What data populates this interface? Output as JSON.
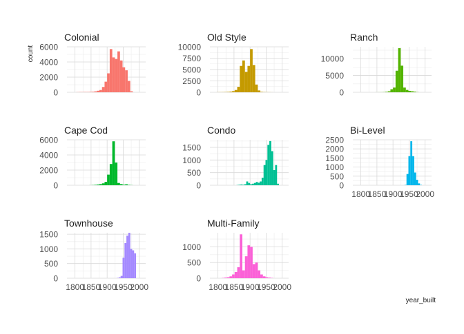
{
  "figure": {
    "ylabel": "count",
    "xlabel": "year_built"
  },
  "style": {
    "grid_major": "#d9d9d9",
    "grid_minor": "#ececec",
    "text": "#222222",
    "tick_text": "#4d4d4d"
  },
  "chart_data": [
    {
      "type": "bar",
      "title": "Colonial",
      "color": "#F8766D",
      "xlim": [
        1775,
        2020
      ],
      "ylim": [
        0,
        6000
      ],
      "yticks": [
        0,
        2000,
        4000,
        6000
      ],
      "ytick_labels": [
        "0",
        "2000",
        "4000",
        "6000"
      ],
      "xticks": [
        1800,
        1850,
        1900,
        1950,
        2000
      ],
      "xtick_labels": [],
      "bin_start": 1780,
      "bin_width": 8,
      "values": [
        0,
        0,
        0,
        20,
        30,
        30,
        40,
        40,
        50,
        70,
        120,
        200,
        300,
        700,
        1400,
        2500,
        5700,
        4600,
        4400,
        5400,
        4200,
        3300,
        2900,
        1500,
        130
      ]
    },
    {
      "type": "bar",
      "title": "Old Style",
      "color": "#C49A00",
      "xlim": [
        1775,
        2020
      ],
      "ylim": [
        0,
        10000
      ],
      "yticks": [
        0,
        2500,
        5000,
        7500,
        10000
      ],
      "ytick_labels": [
        "0",
        "2500",
        "5000",
        "7500",
        "10000"
      ],
      "xticks": [
        1800,
        1850,
        1900,
        1950,
        2000
      ],
      "xtick_labels": [],
      "bin_start": 1780,
      "bin_width": 8,
      "values": [
        0,
        0,
        20,
        30,
        40,
        60,
        90,
        150,
        250,
        500,
        1200,
        5800,
        7000,
        4500,
        5800,
        9500,
        6000,
        1700,
        400,
        100,
        50,
        30,
        20,
        10,
        0
      ]
    },
    {
      "type": "bar",
      "title": "Ranch",
      "color": "#53B400",
      "xlim": [
        1775,
        2020
      ],
      "ylim": [
        0,
        13500
      ],
      "yticks": [
        0,
        5000,
        10000
      ],
      "ytick_labels": [
        "0",
        "5000",
        "10000"
      ],
      "xticks": [
        1800,
        1850,
        1900,
        1950,
        2000
      ],
      "xtick_labels": [],
      "bin_start": 1780,
      "bin_width": 8,
      "values": [
        0,
        0,
        0,
        0,
        0,
        0,
        0,
        0,
        10,
        20,
        30,
        60,
        150,
        300,
        900,
        1400,
        6400,
        13100,
        7900,
        1400,
        700,
        400,
        300,
        200,
        50
      ]
    },
    {
      "type": "bar",
      "title": "Cape Cod",
      "color": "#00B82B",
      "xlim": [
        1775,
        2020
      ],
      "ylim": [
        0,
        6000
      ],
      "yticks": [
        0,
        2000,
        4000,
        6000
      ],
      "ytick_labels": [
        "0",
        "2000",
        "4000",
        "6000"
      ],
      "xticks": [
        1800,
        1850,
        1900,
        1950,
        2000
      ],
      "xtick_labels": [],
      "bin_start": 1780,
      "bin_width": 8,
      "values": [
        0,
        0,
        0,
        0,
        0,
        0,
        0,
        0,
        10,
        30,
        60,
        100,
        150,
        250,
        450,
        1400,
        2800,
        5800,
        3000,
        300,
        150,
        80,
        130,
        50,
        20
      ]
    },
    {
      "type": "bar",
      "title": "Condo",
      "color": "#00C094",
      "xlim": [
        1775,
        2020
      ],
      "ylim": [
        0,
        1800
      ],
      "yticks": [
        0,
        500,
        1000,
        1500
      ],
      "ytick_labels": [
        "0",
        "500",
        "1000",
        "1500"
      ],
      "xticks": [
        1800,
        1850,
        1900,
        1950,
        2000
      ],
      "xtick_labels": [],
      "bin_start": 1780,
      "bin_width": 6,
      "values": [
        0,
        0,
        0,
        0,
        0,
        0,
        0,
        0,
        0,
        0,
        0,
        0,
        0,
        10,
        20,
        30,
        20,
        40,
        150,
        90,
        40,
        60,
        90,
        130,
        100,
        150,
        300,
        800,
        1000,
        1600,
        1750,
        1350,
        600,
        800,
        60
      ]
    },
    {
      "type": "bar",
      "title": "Bi-Level",
      "color": "#00B6EB",
      "xlim": [
        1775,
        2020
      ],
      "ylim": [
        0,
        2500
      ],
      "yticks": [
        0,
        500,
        1000,
        1500,
        2000,
        2500
      ],
      "ytick_labels": [
        "0",
        "500",
        "1000",
        "1500",
        "2000",
        "2500"
      ],
      "xticks": [
        1800,
        1850,
        1900,
        1950,
        2000
      ],
      "xtick_labels": [
        "1800",
        "1850",
        "1900",
        "1950",
        "2000"
      ],
      "bin_start": 1780,
      "bin_width": 6,
      "values": [
        0,
        0,
        0,
        0,
        0,
        0,
        0,
        0,
        0,
        0,
        0,
        0,
        0,
        0,
        0,
        0,
        0,
        0,
        0,
        0,
        0,
        0,
        0,
        0,
        0,
        0,
        20,
        620,
        1600,
        2420,
        1600,
        700,
        300,
        100,
        20
      ]
    },
    {
      "type": "bar",
      "title": "Townhouse",
      "color": "#A58AFF",
      "xlim": [
        1775,
        2020
      ],
      "ylim": [
        0,
        1550
      ],
      "yticks": [
        0,
        500,
        1000,
        1500
      ],
      "ytick_labels": [
        "0",
        "500",
        "1000",
        "1500"
      ],
      "xticks": [
        1800,
        1850,
        1900,
        1950,
        2000
      ],
      "xtick_labels": [
        "1800",
        "1850",
        "1900",
        "1950",
        "2000"
      ],
      "bin_start": 1780,
      "bin_width": 6,
      "values": [
        0,
        0,
        0,
        0,
        0,
        0,
        0,
        0,
        0,
        0,
        0,
        0,
        0,
        0,
        0,
        0,
        0,
        0,
        0,
        0,
        0,
        0,
        0,
        0,
        0,
        10,
        30,
        80,
        700,
        1200,
        1450,
        1550,
        1000,
        950,
        850
      ]
    },
    {
      "type": "bar",
      "title": "Multi-Family",
      "color": "#FB61D7",
      "xlim": [
        1775,
        2020
      ],
      "ylim": [
        0,
        1450
      ],
      "yticks": [
        0,
        500,
        1000
      ],
      "ytick_labels": [
        "0",
        "500",
        "1000"
      ],
      "xticks": [
        1800,
        1850,
        1900,
        1950,
        2000
      ],
      "xtick_labels": [
        "1800",
        "1850",
        "1900",
        "1950",
        "2000"
      ],
      "bin_start": 1780,
      "bin_width": 8,
      "values": [
        0,
        0,
        0,
        0,
        10,
        20,
        30,
        60,
        120,
        200,
        350,
        1400,
        250,
        700,
        1050,
        1000,
        450,
        500,
        250,
        120,
        60,
        30,
        20,
        10,
        0
      ]
    }
  ]
}
